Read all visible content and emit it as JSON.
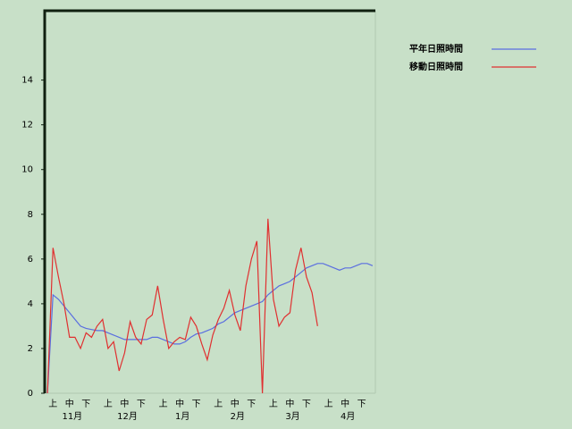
{
  "chart_data": {
    "type": "line",
    "categories": [
      null,
      "上",
      null,
      null,
      "中",
      null,
      null,
      "下",
      null,
      null,
      null,
      "上",
      null,
      null,
      "中",
      null,
      null,
      "下",
      null,
      null,
      null,
      "上",
      null,
      null,
      "中",
      null,
      null,
      "下",
      null,
      null,
      null,
      "上",
      null,
      null,
      "中",
      null,
      null,
      "下",
      null,
      null,
      null,
      "上",
      null,
      null,
      "中",
      null,
      null,
      "下",
      null,
      null,
      null,
      "上",
      null,
      null,
      "中",
      null,
      null,
      "下",
      null,
      null
    ],
    "months": [
      "11月",
      "12月",
      "1月",
      "2月",
      "3月",
      "4月"
    ],
    "series": [
      {
        "name": "平年日照時間",
        "color": "#5a6ee0",
        "values": [
          0,
          4.4,
          4.2,
          3.9,
          3.6,
          3.3,
          3.0,
          2.9,
          2.85,
          2.8,
          2.8,
          2.7,
          2.6,
          2.5,
          2.4,
          2.4,
          2.4,
          2.4,
          2.4,
          2.5,
          2.5,
          2.4,
          2.3,
          2.2,
          2.2,
          2.3,
          2.5,
          2.65,
          2.7,
          2.8,
          2.9,
          3.1,
          3.2,
          3.4,
          3.6,
          3.7,
          3.8,
          3.9,
          4.0,
          4.1,
          4.4,
          4.6,
          4.8,
          4.9,
          5.0,
          5.2,
          5.4,
          5.6,
          5.7,
          5.8,
          5.8,
          5.7,
          5.6,
          5.5,
          5.6,
          5.6,
          5.7,
          5.8,
          5.8,
          5.7
        ]
      },
      {
        "name": "移動日照時間",
        "color": "#e03030",
        "values": [
          0,
          6.5,
          5.2,
          4.0,
          2.5,
          2.5,
          2.0,
          2.7,
          2.5,
          3.0,
          3.3,
          2.0,
          2.3,
          1.0,
          1.8,
          3.2,
          2.5,
          2.2,
          3.3,
          3.5,
          4.8,
          3.3,
          2.0,
          2.3,
          2.5,
          2.4,
          3.4,
          3.0,
          2.2,
          1.5,
          2.6,
          3.3,
          3.8,
          4.6,
          3.5,
          2.8,
          4.8,
          6.0,
          6.8,
          0,
          7.8,
          4.2,
          3.0,
          3.4,
          3.6,
          5.5,
          6.5,
          5.2,
          4.5,
          3.0,
          null,
          null,
          null,
          null,
          null,
          null,
          null,
          null,
          null,
          null
        ]
      }
    ],
    "ylim": [
      0,
      17.1
    ],
    "yticks": [
      0,
      2,
      4,
      6,
      8,
      10,
      12,
      14
    ]
  }
}
